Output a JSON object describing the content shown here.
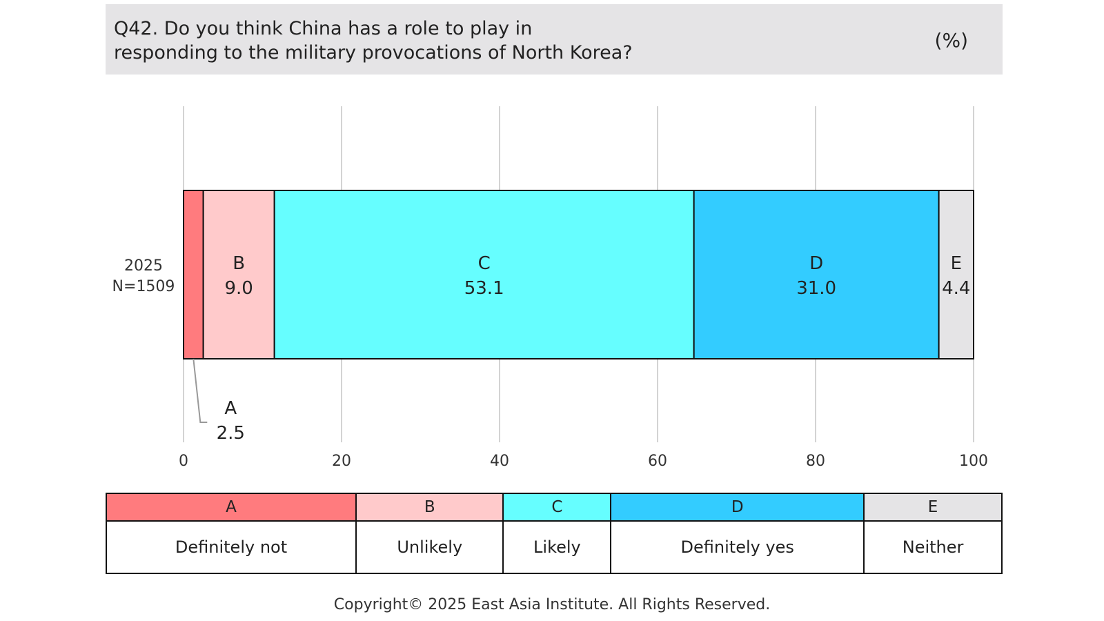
{
  "header": {
    "question_line1": "Q42. Do you think China has a role to play in",
    "question_line2": "responding to the military provocations of North Korea?",
    "unit": "(%)"
  },
  "chart_data": {
    "type": "bar",
    "orientation": "horizontal",
    "stacked": true,
    "categories": [
      "2025\nN=1509"
    ],
    "row_label": {
      "year": "2025",
      "n": "N=1509"
    },
    "series": [
      {
        "name": "A",
        "label": "Definitely not",
        "values": [
          2.5
        ],
        "color": "#ff7b7e"
      },
      {
        "name": "B",
        "label": "Unlikely",
        "values": [
          9.0
        ],
        "color": "#ffcacb"
      },
      {
        "name": "C",
        "label": "Likely",
        "values": [
          53.1
        ],
        "color": "#66feff"
      },
      {
        "name": "D",
        "label": "Definitely yes",
        "values": [
          31.0
        ],
        "color": "#33ccff"
      },
      {
        "name": "E",
        "label": "Neither",
        "values": [
          4.4
        ],
        "color": "#e5e4e6"
      }
    ],
    "xlim": [
      0,
      100
    ],
    "x_ticks": [
      0,
      20,
      40,
      60,
      80,
      100
    ],
    "grid": true,
    "legend_placement": "bottom table"
  },
  "legend": [
    {
      "code": "A",
      "label": "Definitely not",
      "color": "#ff7b7e"
    },
    {
      "code": "B",
      "label": "Unlikely",
      "color": "#ffcacb"
    },
    {
      "code": "C",
      "label": "Likely",
      "color": "#66feff"
    },
    {
      "code": "D",
      "label": "Definitely yes",
      "color": "#33ccff"
    },
    {
      "code": "E",
      "label": "Neither",
      "color": "#e5e4e6"
    }
  ],
  "footer": "Copyright© 2025 East Asia Institute. All Rights Reserved."
}
